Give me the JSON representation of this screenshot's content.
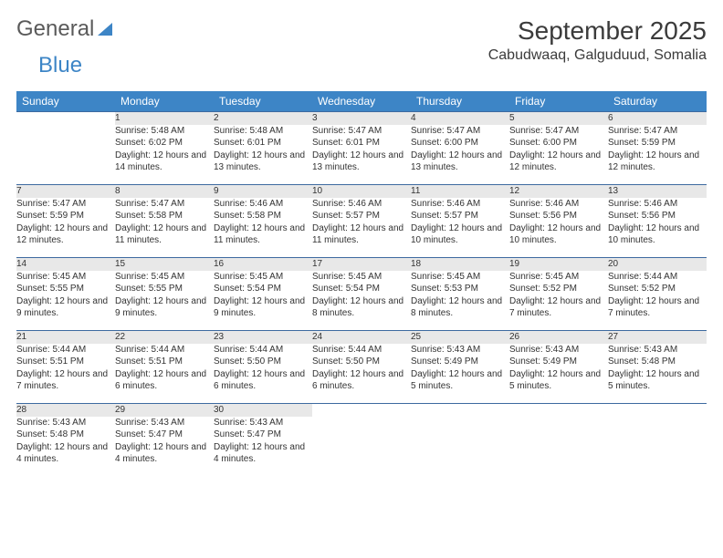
{
  "brand": {
    "part1": "General",
    "part2": "Blue"
  },
  "title": "September 2025",
  "location": "Cabudwaaq, Galguduud, Somalia",
  "colors": {
    "header_bg": "#3d85c6",
    "header_fg": "#ffffff",
    "daynum_bg": "#e8e8e8",
    "row_border": "#3d6aa0",
    "text": "#333333",
    "logo_gray": "#5a5a5a",
    "logo_blue": "#3d85c6"
  },
  "day_headers": [
    "Sunday",
    "Monday",
    "Tuesday",
    "Wednesday",
    "Thursday",
    "Friday",
    "Saturday"
  ],
  "weeks": [
    [
      null,
      {
        "n": "1",
        "sr": "Sunrise: 5:48 AM",
        "ss": "Sunset: 6:02 PM",
        "dl": "Daylight: 12 hours and 14 minutes."
      },
      {
        "n": "2",
        "sr": "Sunrise: 5:48 AM",
        "ss": "Sunset: 6:01 PM",
        "dl": "Daylight: 12 hours and 13 minutes."
      },
      {
        "n": "3",
        "sr": "Sunrise: 5:47 AM",
        "ss": "Sunset: 6:01 PM",
        "dl": "Daylight: 12 hours and 13 minutes."
      },
      {
        "n": "4",
        "sr": "Sunrise: 5:47 AM",
        "ss": "Sunset: 6:00 PM",
        "dl": "Daylight: 12 hours and 13 minutes."
      },
      {
        "n": "5",
        "sr": "Sunrise: 5:47 AM",
        "ss": "Sunset: 6:00 PM",
        "dl": "Daylight: 12 hours and 12 minutes."
      },
      {
        "n": "6",
        "sr": "Sunrise: 5:47 AM",
        "ss": "Sunset: 5:59 PM",
        "dl": "Daylight: 12 hours and 12 minutes."
      }
    ],
    [
      {
        "n": "7",
        "sr": "Sunrise: 5:47 AM",
        "ss": "Sunset: 5:59 PM",
        "dl": "Daylight: 12 hours and 12 minutes."
      },
      {
        "n": "8",
        "sr": "Sunrise: 5:47 AM",
        "ss": "Sunset: 5:58 PM",
        "dl": "Daylight: 12 hours and 11 minutes."
      },
      {
        "n": "9",
        "sr": "Sunrise: 5:46 AM",
        "ss": "Sunset: 5:58 PM",
        "dl": "Daylight: 12 hours and 11 minutes."
      },
      {
        "n": "10",
        "sr": "Sunrise: 5:46 AM",
        "ss": "Sunset: 5:57 PM",
        "dl": "Daylight: 12 hours and 11 minutes."
      },
      {
        "n": "11",
        "sr": "Sunrise: 5:46 AM",
        "ss": "Sunset: 5:57 PM",
        "dl": "Daylight: 12 hours and 10 minutes."
      },
      {
        "n": "12",
        "sr": "Sunrise: 5:46 AM",
        "ss": "Sunset: 5:56 PM",
        "dl": "Daylight: 12 hours and 10 minutes."
      },
      {
        "n": "13",
        "sr": "Sunrise: 5:46 AM",
        "ss": "Sunset: 5:56 PM",
        "dl": "Daylight: 12 hours and 10 minutes."
      }
    ],
    [
      {
        "n": "14",
        "sr": "Sunrise: 5:45 AM",
        "ss": "Sunset: 5:55 PM",
        "dl": "Daylight: 12 hours and 9 minutes."
      },
      {
        "n": "15",
        "sr": "Sunrise: 5:45 AM",
        "ss": "Sunset: 5:55 PM",
        "dl": "Daylight: 12 hours and 9 minutes."
      },
      {
        "n": "16",
        "sr": "Sunrise: 5:45 AM",
        "ss": "Sunset: 5:54 PM",
        "dl": "Daylight: 12 hours and 9 minutes."
      },
      {
        "n": "17",
        "sr": "Sunrise: 5:45 AM",
        "ss": "Sunset: 5:54 PM",
        "dl": "Daylight: 12 hours and 8 minutes."
      },
      {
        "n": "18",
        "sr": "Sunrise: 5:45 AM",
        "ss": "Sunset: 5:53 PM",
        "dl": "Daylight: 12 hours and 8 minutes."
      },
      {
        "n": "19",
        "sr": "Sunrise: 5:45 AM",
        "ss": "Sunset: 5:52 PM",
        "dl": "Daylight: 12 hours and 7 minutes."
      },
      {
        "n": "20",
        "sr": "Sunrise: 5:44 AM",
        "ss": "Sunset: 5:52 PM",
        "dl": "Daylight: 12 hours and 7 minutes."
      }
    ],
    [
      {
        "n": "21",
        "sr": "Sunrise: 5:44 AM",
        "ss": "Sunset: 5:51 PM",
        "dl": "Daylight: 12 hours and 7 minutes."
      },
      {
        "n": "22",
        "sr": "Sunrise: 5:44 AM",
        "ss": "Sunset: 5:51 PM",
        "dl": "Daylight: 12 hours and 6 minutes."
      },
      {
        "n": "23",
        "sr": "Sunrise: 5:44 AM",
        "ss": "Sunset: 5:50 PM",
        "dl": "Daylight: 12 hours and 6 minutes."
      },
      {
        "n": "24",
        "sr": "Sunrise: 5:44 AM",
        "ss": "Sunset: 5:50 PM",
        "dl": "Daylight: 12 hours and 6 minutes."
      },
      {
        "n": "25",
        "sr": "Sunrise: 5:43 AM",
        "ss": "Sunset: 5:49 PM",
        "dl": "Daylight: 12 hours and 5 minutes."
      },
      {
        "n": "26",
        "sr": "Sunrise: 5:43 AM",
        "ss": "Sunset: 5:49 PM",
        "dl": "Daylight: 12 hours and 5 minutes."
      },
      {
        "n": "27",
        "sr": "Sunrise: 5:43 AM",
        "ss": "Sunset: 5:48 PM",
        "dl": "Daylight: 12 hours and 5 minutes."
      }
    ],
    [
      {
        "n": "28",
        "sr": "Sunrise: 5:43 AM",
        "ss": "Sunset: 5:48 PM",
        "dl": "Daylight: 12 hours and 4 minutes."
      },
      {
        "n": "29",
        "sr": "Sunrise: 5:43 AM",
        "ss": "Sunset: 5:47 PM",
        "dl": "Daylight: 12 hours and 4 minutes."
      },
      {
        "n": "30",
        "sr": "Sunrise: 5:43 AM",
        "ss": "Sunset: 5:47 PM",
        "dl": "Daylight: 12 hours and 4 minutes."
      },
      null,
      null,
      null,
      null
    ]
  ]
}
